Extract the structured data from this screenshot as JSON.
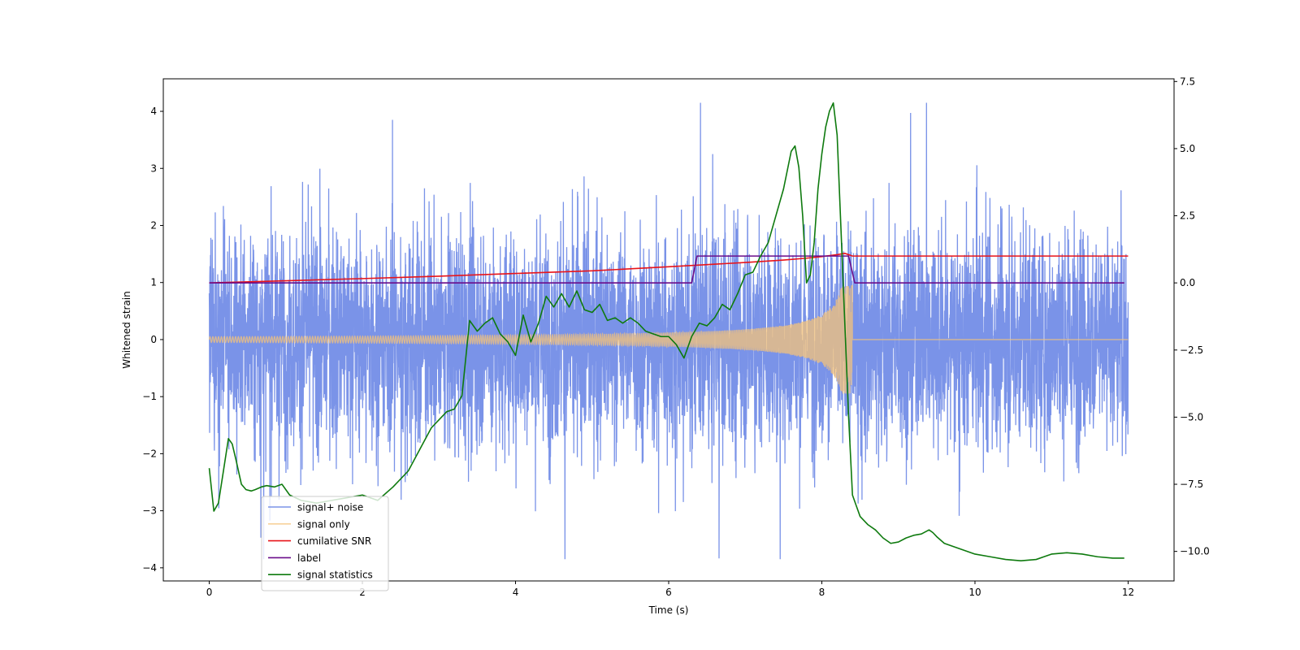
{
  "chart_data": {
    "type": "line",
    "title": "",
    "xlabel": "Time (s)",
    "ylabel": "Whitened strain",
    "y2label": "",
    "xlim": [
      -0.6,
      12.6
    ],
    "ylim": [
      -4.23,
      4.57
    ],
    "y2lim": [
      -11.1,
      7.6
    ],
    "x_ticks": [
      0,
      2,
      4,
      6,
      8,
      10,
      12
    ],
    "x_tick_labels": [
      "0",
      "2",
      "4",
      "6",
      "8",
      "10",
      "12"
    ],
    "y_ticks": [
      -4,
      -3,
      -2,
      -1,
      0,
      1,
      2,
      3,
      4
    ],
    "y_tick_labels": [
      "−4",
      "−3",
      "−2",
      "−1",
      "0",
      "1",
      "2",
      "3",
      "4"
    ],
    "y2_ticks": [
      -10,
      -7.5,
      -5,
      -2.5,
      0,
      2.5,
      5,
      7.5
    ],
    "y2_tick_labels": [
      "−10.0",
      "−7.5",
      "−5.0",
      "−2.5",
      "0.0",
      "2.5",
      "5.0",
      "7.5"
    ],
    "grid": false,
    "legend_position": "lower-left",
    "series": [
      {
        "name": "signal+ noise",
        "color": "#7a93e8",
        "axis": "left",
        "kind": "noise",
        "t_start": 0,
        "t_end": 12,
        "noise_sigma": 1.0,
        "max_value": 4.15,
        "min_value": -3.85
      },
      {
        "name": "signal only",
        "color": "#f5c37a",
        "axis": "left",
        "kind": "chirp",
        "t_start": 0,
        "t_end": 12,
        "merger_time": 8.4,
        "initial_amplitude": 0.05,
        "peak_amplitude": 0.95
      },
      {
        "name": "cumilative SNR",
        "color": "#e8141a",
        "axis": "right",
        "x": [
          0,
          1,
          2,
          3,
          4,
          5,
          6,
          6.5,
          7,
          7.5,
          7.8,
          8.0,
          8.2,
          8.3,
          8.4,
          9,
          10,
          11,
          12
        ],
        "y": [
          0,
          0.08,
          0.16,
          0.25,
          0.35,
          0.45,
          0.6,
          0.68,
          0.76,
          0.85,
          0.92,
          0.98,
          1.05,
          1.1,
          1.0,
          1.0,
          1.0,
          1.0,
          1.0
        ]
      },
      {
        "name": "label",
        "color": "#6a0d8a",
        "axis": "right",
        "x": [
          0,
          6.3,
          6.37,
          8.35,
          8.43,
          11.95
        ],
        "y": [
          0,
          0,
          1,
          1,
          0,
          0
        ]
      },
      {
        "name": "signal statistics",
        "color": "#0e7a0e",
        "axis": "right",
        "x": [
          0,
          0.06,
          0.12,
          0.18,
          0.25,
          0.3,
          0.35,
          0.42,
          0.48,
          0.55,
          0.6,
          0.68,
          0.75,
          0.85,
          0.95,
          1.05,
          1.2,
          1.4,
          1.6,
          1.8,
          2.0,
          2.2,
          2.4,
          2.6,
          2.75,
          2.9,
          3.0,
          3.1,
          3.2,
          3.3,
          3.4,
          3.5,
          3.6,
          3.7,
          3.8,
          3.9,
          4.0,
          4.1,
          4.2,
          4.3,
          4.4,
          4.5,
          4.6,
          4.7,
          4.8,
          4.9,
          5.0,
          5.1,
          5.2,
          5.3,
          5.4,
          5.5,
          5.6,
          5.7,
          5.8,
          5.9,
          6.0,
          6.1,
          6.2,
          6.3,
          6.4,
          6.5,
          6.6,
          6.7,
          6.8,
          6.9,
          7.0,
          7.1,
          7.2,
          7.3,
          7.4,
          7.5,
          7.55,
          7.6,
          7.65,
          7.7,
          7.75,
          7.8,
          7.85,
          7.9,
          7.95,
          8.0,
          8.05,
          8.1,
          8.15,
          8.2,
          8.25,
          8.3,
          8.35,
          8.4,
          8.45,
          8.5,
          8.6,
          8.7,
          8.8,
          8.9,
          9.0,
          9.1,
          9.2,
          9.3,
          9.4,
          9.45,
          9.5,
          9.6,
          9.8,
          10.0,
          10.2,
          10.4,
          10.6,
          10.8,
          10.9,
          11.0,
          11.2,
          11.4,
          11.6,
          11.8,
          11.95
        ],
        "y": [
          -6.9,
          -8.5,
          -8.2,
          -7.1,
          -5.8,
          -6.0,
          -6.6,
          -7.5,
          -7.7,
          -7.75,
          -7.7,
          -7.6,
          -7.55,
          -7.6,
          -7.5,
          -7.9,
          -8.1,
          -8.2,
          -8.1,
          -8.0,
          -7.9,
          -8.1,
          -7.6,
          -7.0,
          -6.2,
          -5.4,
          -5.1,
          -4.8,
          -4.7,
          -4.2,
          -1.4,
          -1.8,
          -1.5,
          -1.3,
          -1.9,
          -2.2,
          -2.7,
          -1.2,
          -2.2,
          -1.5,
          -0.5,
          -0.9,
          -0.4,
          -0.9,
          -0.3,
          -1.0,
          -1.1,
          -0.8,
          -1.4,
          -1.3,
          -1.5,
          -1.3,
          -1.5,
          -1.8,
          -1.9,
          -2.0,
          -2.0,
          -2.3,
          -2.8,
          -2.0,
          -1.5,
          -1.6,
          -1.3,
          -0.8,
          -1.0,
          -0.4,
          0.3,
          0.4,
          1.0,
          1.5,
          2.5,
          3.5,
          4.2,
          4.9,
          5.1,
          4.3,
          2.5,
          0.0,
          0.3,
          1.5,
          3.5,
          4.8,
          5.8,
          6.4,
          6.7,
          5.5,
          2.0,
          -1.5,
          -5.0,
          -7.9,
          -8.3,
          -8.7,
          -9.0,
          -9.2,
          -9.5,
          -9.7,
          -9.65,
          -9.5,
          -9.4,
          -9.35,
          -9.2,
          -9.3,
          -9.45,
          -9.7,
          -9.9,
          -10.1,
          -10.2,
          -10.3,
          -10.35,
          -10.3,
          -10.2,
          -10.1,
          -10.05,
          -10.1,
          -10.2,
          -10.25,
          -10.25
        ]
      }
    ]
  }
}
